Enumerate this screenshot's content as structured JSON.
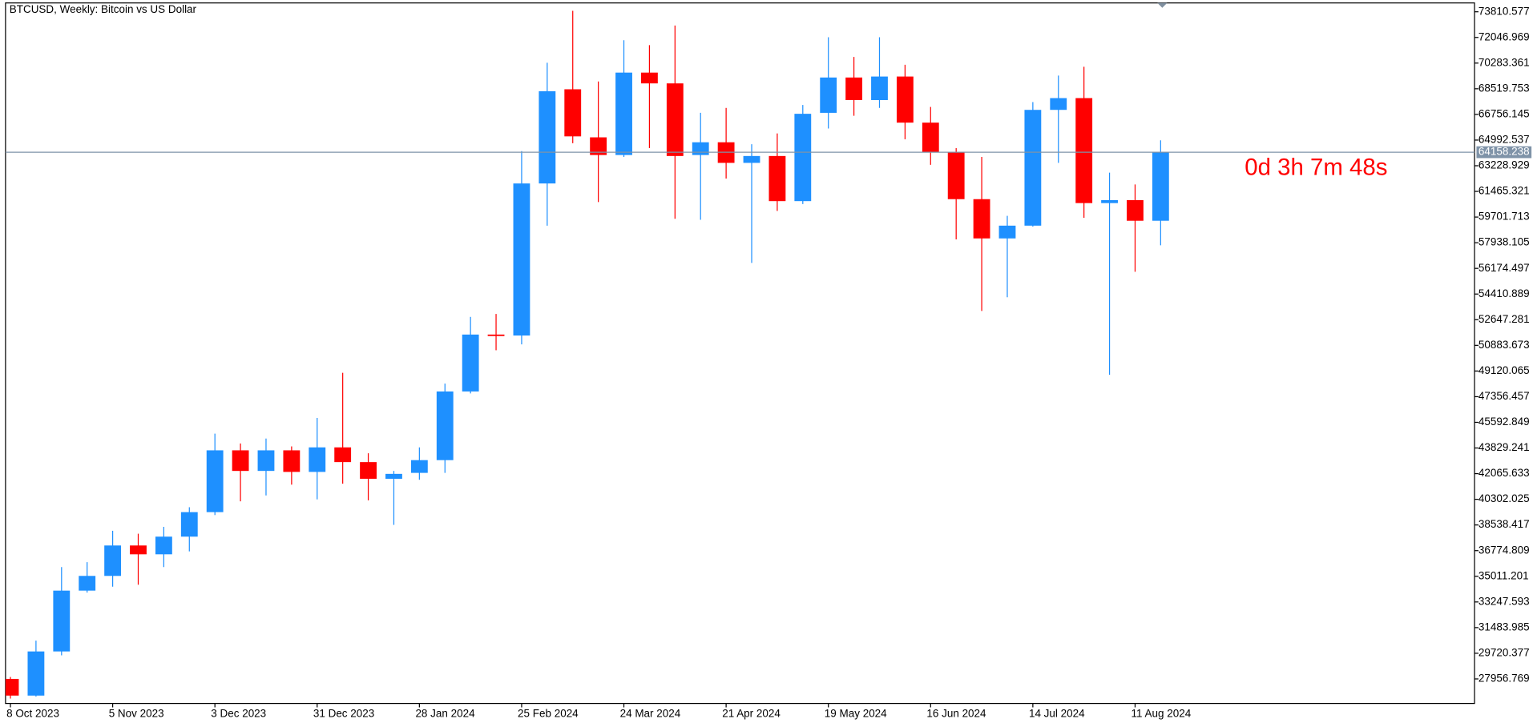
{
  "chart_data": {
    "type": "candlestick",
    "title": "BTCUSD, Weekly:  Bitcoin vs US Dollar",
    "annotation": "0d 3h 7m 48s",
    "current_price": 64158.238,
    "current_price_label": "64158.238",
    "up_color": "#1e90ff",
    "down_color": "#ff0000",
    "categories": [
      "8 Oct 2023",
      null,
      null,
      null,
      "5 Nov 2023",
      null,
      null,
      null,
      "3 Dec 2023",
      null,
      null,
      null,
      "31 Dec 2023",
      null,
      null,
      null,
      "28 Jan 2024",
      null,
      null,
      null,
      "25 Feb 2024",
      null,
      null,
      null,
      "24 Mar 2024",
      null,
      null,
      null,
      "21 Apr 2024",
      null,
      null,
      null,
      "19 May 2024",
      null,
      null,
      null,
      "16 Jun 2024",
      null,
      null,
      null,
      "14 Jul 2024",
      null,
      null,
      null,
      "11 Aug 2024",
      null
    ],
    "open": [
      27958,
      26812,
      29846,
      34027,
      35038,
      37129,
      36522,
      37736,
      39421,
      43669,
      42253,
      43669,
      42186,
      43872,
      42860,
      41714,
      42119,
      42995,
      47715,
      51626,
      51559,
      62010,
      68484,
      65180,
      63966,
      69630,
      68888,
      63966,
      64842,
      63426,
      63898,
      60797,
      66865,
      69293,
      67742,
      69360,
      66191,
      64168,
      60932,
      58234,
      59111,
      67068,
      67877,
      60662,
      60864,
      59448
    ],
    "high": [
      28093,
      30588,
      35645,
      35982,
      38140,
      37938,
      38410,
      39759,
      44816,
      44141,
      44479,
      43939,
      45895,
      48996,
      43467,
      42253,
      43872,
      48255,
      52840,
      53042,
      64236,
      70304,
      73878,
      69023,
      71855,
      71518,
      72867,
      66865,
      67203,
      64708,
      65449,
      67405,
      72058,
      70709,
      72058,
      70169,
      67270,
      64438,
      63831,
      59785,
      67607,
      69428,
      70035,
      62752,
      61943,
      64977
    ],
    "low": [
      26610,
      26744,
      29577,
      33892,
      34297,
      34432,
      35645,
      36724,
      39219,
      40163,
      40568,
      41309,
      40298,
      41377,
      40231,
      38545,
      41647,
      42119,
      47580,
      50547,
      50952,
      59111,
      64775,
      60729,
      63831,
      64438,
      59583,
      59516,
      62348,
      56549,
      60122,
      60594,
      65787,
      66663,
      67203,
      65045,
      63292,
      58167,
      53245,
      54189,
      59044,
      63426,
      59650,
      48862,
      55942,
      57762
    ],
    "close": [
      26812,
      29846,
      34027,
      35038,
      37129,
      36522,
      37736,
      39421,
      43669,
      42253,
      43669,
      42186,
      43872,
      42860,
      41714,
      42051,
      42995,
      47715,
      51626,
      51559,
      62010,
      68349,
      65247,
      63966,
      69630,
      68888,
      63898,
      64842,
      63426,
      63898,
      60797,
      66798,
      69293,
      67742,
      69360,
      66191,
      64168,
      60932,
      58234,
      59111,
      67068,
      67877,
      60662,
      60864,
      59448,
      64158
    ],
    "ylim": [
      26271.6,
      74417.5
    ],
    "yticks": [
      73810.577,
      72046.969,
      70283.361,
      68519.753,
      66756.145,
      64992.537,
      63228.929,
      61465.321,
      59701.713,
      57938.105,
      56174.497,
      54410.889,
      52647.281,
      50883.673,
      49120.065,
      47356.457,
      45592.849,
      43829.241,
      42065.633,
      40302.025,
      38538.417,
      36774.809,
      35011.201,
      33247.593,
      31483.985,
      29720.377,
      27956.769
    ]
  }
}
